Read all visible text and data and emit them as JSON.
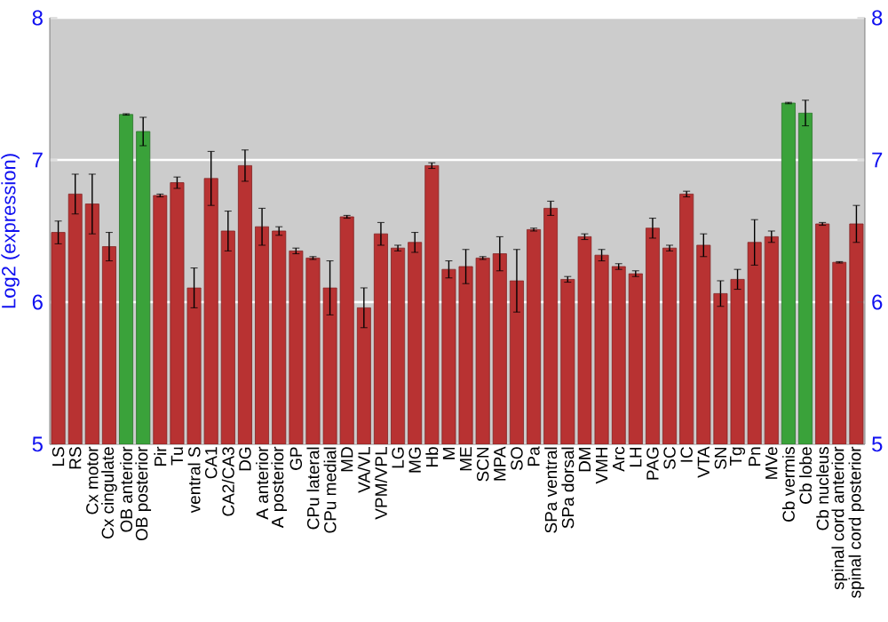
{
  "chart_data": {
    "type": "bar",
    "ylabel": "Log2 (expression)",
    "categories": [
      "LS",
      "RS",
      "Cx motor",
      "Cx cingulate",
      "OB anterior",
      "OB posterior",
      "Pir",
      "Tu",
      "ventral S",
      "CA1",
      "CA2/CA3",
      "DG",
      "A anterior",
      "A posterior",
      "GP",
      "CPu lateral",
      "CPu medial",
      "MD",
      "VA/VL",
      "VPM/VPL",
      "LG",
      "MG",
      "Hb",
      "M",
      "ME",
      "SCN",
      "MPA",
      "SO",
      "Pa",
      "SPa ventral",
      "SPa dorsal",
      "DM",
      "VMH",
      "Arc",
      "LH",
      "PAG",
      "SC",
      "IC",
      "VTA",
      "SN",
      "Tg",
      "Pn",
      "MVe",
      "Cb vermis",
      "Cb lobe",
      "Cb nucleus",
      "spinal cord anterior",
      "spinal cord posterior"
    ],
    "values": [
      6.49,
      6.76,
      6.69,
      6.39,
      7.32,
      7.2,
      6.75,
      6.84,
      6.1,
      6.87,
      6.5,
      6.96,
      6.53,
      6.5,
      6.36,
      6.31,
      6.1,
      6.6,
      5.96,
      6.48,
      6.38,
      6.42,
      6.96,
      6.23,
      6.25,
      6.31,
      6.34,
      6.15,
      6.51,
      6.66,
      6.16,
      6.46,
      6.33,
      6.25,
      6.2,
      6.52,
      6.38,
      6.76,
      6.4,
      6.06,
      6.16,
      6.42,
      6.46,
      7.4,
      7.33,
      6.55,
      6.28,
      6.55
    ],
    "errors": [
      0.08,
      0.14,
      0.21,
      0.1,
      0.005,
      0.1,
      0.01,
      0.04,
      0.14,
      0.19,
      0.14,
      0.11,
      0.13,
      0.03,
      0.02,
      0.01,
      0.19,
      0.01,
      0.14,
      0.08,
      0.02,
      0.07,
      0.02,
      0.06,
      0.12,
      0.01,
      0.12,
      0.22,
      0.01,
      0.05,
      0.02,
      0.02,
      0.04,
      0.02,
      0.02,
      0.07,
      0.02,
      0.02,
      0.08,
      0.09,
      0.07,
      0.16,
      0.04,
      0.005,
      0.09,
      0.01,
      0.005,
      0.13
    ],
    "colors": [
      "#b83232",
      "#b83232",
      "#b83232",
      "#b83232",
      "#3aa23a",
      "#3aa23a",
      "#b83232",
      "#b83232",
      "#b83232",
      "#b83232",
      "#b83232",
      "#b83232",
      "#b83232",
      "#b83232",
      "#b83232",
      "#b83232",
      "#b83232",
      "#b83232",
      "#b83232",
      "#b83232",
      "#b83232",
      "#b83232",
      "#b83232",
      "#b83232",
      "#b83232",
      "#b83232",
      "#b83232",
      "#b83232",
      "#b83232",
      "#b83232",
      "#b83232",
      "#b83232",
      "#b83232",
      "#b83232",
      "#b83232",
      "#b83232",
      "#b83232",
      "#b83232",
      "#b83232",
      "#b83232",
      "#b83232",
      "#b83232",
      "#b83232",
      "#3aa23a",
      "#3aa23a",
      "#b83232",
      "#b83232",
      "#b83232"
    ],
    "ylim": [
      5,
      8
    ],
    "yticks": [
      5,
      6,
      7,
      8
    ],
    "y2lim": [
      5,
      8
    ],
    "y2ticks": [
      5,
      6,
      7,
      8
    ],
    "grid": "y"
  }
}
